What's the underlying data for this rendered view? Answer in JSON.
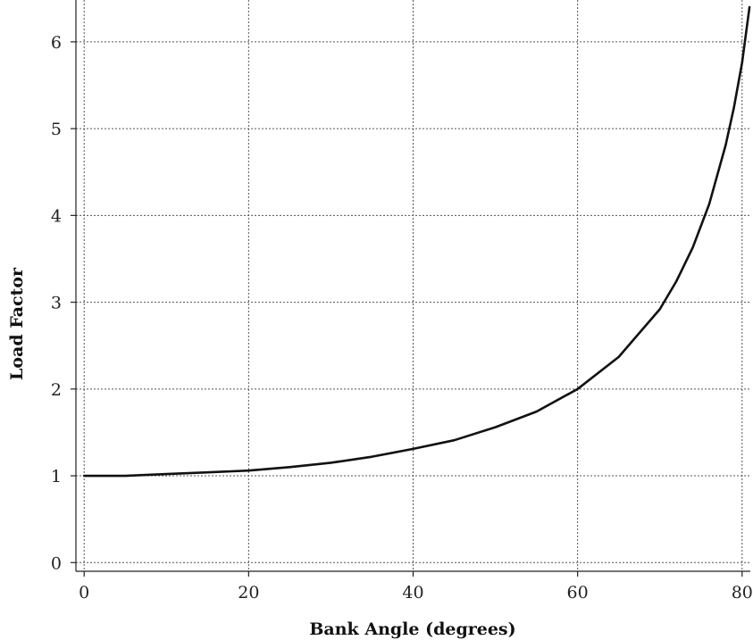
{
  "chart_data": {
    "type": "line",
    "title": "",
    "xlabel": "Bank Angle (degrees)",
    "ylabel": "Load Factor",
    "xlim": [
      -1,
      81
    ],
    "ylim": [
      -0.1,
      6.4
    ],
    "x_ticks": [
      0,
      20,
      40,
      60,
      80
    ],
    "y_ticks": [
      0,
      1,
      2,
      3,
      4,
      5,
      6
    ],
    "grid": true,
    "legend": "none",
    "colors": {
      "line": "#111111",
      "grid": "#555555",
      "axis": "#222222"
    },
    "series": [
      {
        "x": [
          0,
          5,
          10,
          15,
          20,
          25,
          30,
          35,
          40,
          45,
          50,
          55,
          60,
          65,
          70,
          72,
          74,
          76,
          78,
          79,
          80,
          80.9
        ],
        "y": [
          1.0,
          1.0,
          1.02,
          1.04,
          1.06,
          1.1,
          1.15,
          1.22,
          1.31,
          1.41,
          1.56,
          1.74,
          2.0,
          2.37,
          2.92,
          3.24,
          3.63,
          4.13,
          4.81,
          5.24,
          5.76,
          6.4
        ]
      }
    ]
  }
}
